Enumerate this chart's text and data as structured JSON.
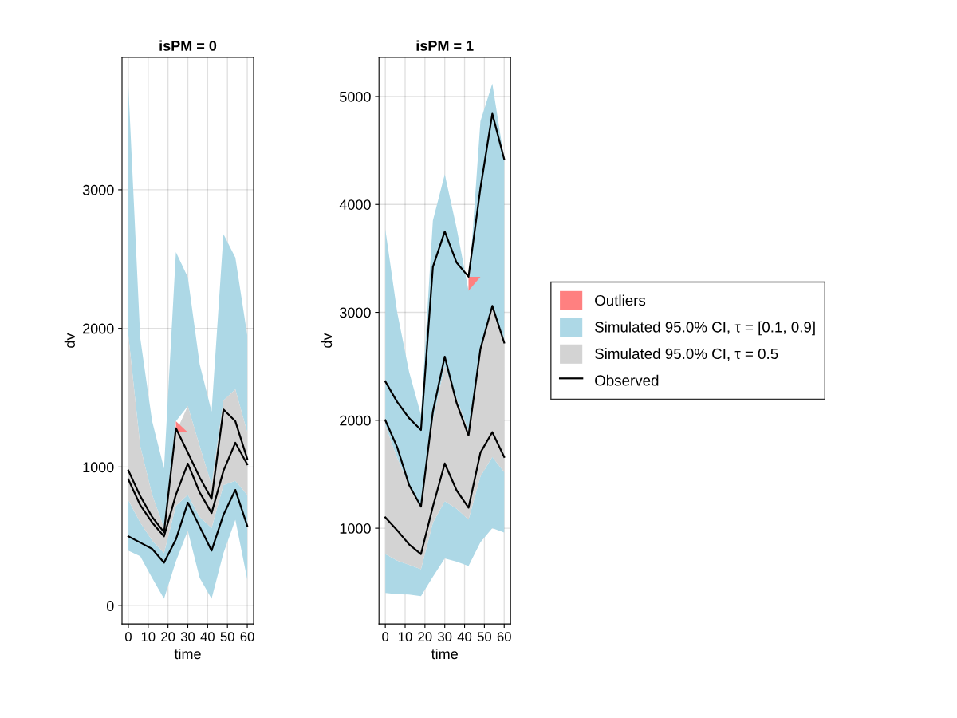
{
  "chart_data": [
    {
      "type": "line",
      "title": "isPM = 0",
      "xlabel": "time",
      "ylabel": "dv",
      "x": [
        0,
        6,
        12,
        18,
        24,
        30,
        36,
        42,
        48,
        54,
        60
      ],
      "xlim": [
        -3.2,
        63.2
      ],
      "xticks": [
        0,
        10,
        20,
        30,
        40,
        50,
        60
      ],
      "ylim": [
        -132,
        3955
      ],
      "yticks": [
        0,
        1000,
        2000,
        3000
      ],
      "grid": true,
      "legend": false,
      "series": [
        {
          "color": "#ff8080",
          "values": [
            null,
            null,
            null,
            null,
            null,
            null,
            null,
            null,
            null,
            null,
            null
          ],
          "lower": [
            null,
            null,
            null,
            null,
            1250,
            1250,
            null,
            null,
            null,
            null,
            null
          ],
          "upper": [
            null,
            null,
            null,
            null,
            1330,
            1250,
            null,
            null,
            null,
            null,
            null
          ]
        },
        {
          "color": "#add8e6",
          "values": [
            null,
            null,
            null,
            null,
            null,
            null,
            null,
            null,
            null,
            null,
            null
          ],
          "lower": [
            397,
            357,
            200,
            50,
            320,
            540,
            200,
            50,
            380,
            620,
            190
          ],
          "upper": [
            760,
            600,
            470,
            380,
            720,
            800,
            640,
            560,
            870,
            900,
            800
          ]
        },
        {
          "color": "#add8e6",
          "values": [
            null,
            null,
            null,
            null,
            null,
            null,
            null,
            null,
            null,
            null,
            null
          ],
          "lower": [
            1950,
            1150,
            800,
            560,
            1330,
            1440,
            1150,
            870,
            1480,
            1560,
            1250
          ],
          "upper": [
            3750,
            1930,
            1330,
            990,
            2550,
            2370,
            1740,
            1400,
            2680,
            2510,
            1950
          ]
        },
        {
          "color": "#d3d3d3",
          "values": [
            null,
            null,
            null,
            null,
            null,
            null,
            null,
            null,
            null,
            null,
            null
          ],
          "lower": [
            760,
            600,
            470,
            380,
            720,
            800,
            640,
            560,
            870,
            900,
            800
          ],
          "upper": [
            1950,
            1150,
            800,
            560,
            1250,
            1440,
            1150,
            870,
            1480,
            1560,
            1250
          ]
        },
        {
          "color": "#000000",
          "values": [
            975,
            790,
            640,
            530,
            1280,
            1105,
            925,
            770,
            1415,
            1330,
            1060
          ]
        },
        {
          "color": "#000000",
          "values": [
            910,
            725,
            600,
            500,
            800,
            1025,
            817,
            668,
            973,
            1175,
            1020
          ]
        },
        {
          "color": "#000000",
          "values": [
            500,
            455,
            410,
            310,
            478,
            743,
            570,
            397,
            656,
            835,
            576
          ]
        }
      ]
    },
    {
      "type": "line",
      "title": "isPM = 1",
      "xlabel": "time",
      "ylabel": "dv",
      "x": [
        0,
        6,
        12,
        18,
        24,
        30,
        36,
        42,
        48,
        54,
        60
      ],
      "xlim": [
        -3.2,
        63.2
      ],
      "xticks": [
        0,
        10,
        20,
        30,
        40,
        50,
        60
      ],
      "ylim": [
        113,
        5362
      ],
      "yticks": [
        1000,
        2000,
        3000,
        4000,
        5000
      ],
      "grid": true,
      "legend": "right",
      "series": [
        {
          "name": "Outliers",
          "color": "#ff8080",
          "values": [
            null,
            null,
            null,
            null,
            null,
            null,
            null,
            null,
            null,
            null,
            null
          ],
          "lower": [
            null,
            null,
            null,
            null,
            null,
            null,
            null,
            3200,
            3330,
            null,
            null
          ],
          "upper": [
            null,
            null,
            null,
            null,
            null,
            null,
            null,
            3330,
            3330,
            null,
            null
          ]
        },
        {
          "name": "Simulated 95.0% CI, τ = [0.1, 0.9]",
          "color": "#add8e6",
          "values": [
            null,
            null,
            null,
            null,
            null,
            null,
            null,
            null,
            null,
            null,
            null
          ],
          "lower": [
            400,
            390,
            385,
            370,
            550,
            720,
            690,
            650,
            870,
            1000,
            960
          ],
          "upper": [
            760,
            700,
            660,
            620,
            1050,
            1250,
            1180,
            1080,
            1480,
            1660,
            1520
          ]
        },
        {
          "color": "#add8e6",
          "values": [
            null,
            null,
            null,
            null,
            null,
            null,
            null,
            null,
            null,
            null,
            null
          ],
          "lower": [
            1950,
            1650,
            1400,
            1200,
            2000,
            2500,
            2200,
            1900,
            2650,
            3050,
            2750
          ],
          "upper": [
            3770,
            3000,
            2450,
            2050,
            3850,
            4280,
            3780,
            3200,
            4770,
            5120,
            4420
          ]
        },
        {
          "name": "Simulated 95.0% CI, τ = 0.5",
          "color": "#d3d3d3",
          "values": [
            null,
            null,
            null,
            null,
            null,
            null,
            null,
            null,
            null,
            null,
            null
          ],
          "lower": [
            760,
            700,
            660,
            620,
            1050,
            1250,
            1180,
            1080,
            1480,
            1660,
            1520
          ],
          "upper": [
            1950,
            1650,
            1400,
            1200,
            2000,
            2500,
            2200,
            1900,
            2650,
            3050,
            2750
          ]
        },
        {
          "name": "Observed",
          "color": "#000000",
          "values": [
            2360,
            2170,
            2020,
            1910,
            3420,
            3750,
            3460,
            3330,
            4150,
            4840,
            4420
          ]
        },
        {
          "color": "#000000",
          "values": [
            2000,
            1750,
            1400,
            1200,
            2080,
            2590,
            2160,
            1860,
            2660,
            3060,
            2720
          ]
        },
        {
          "color": "#000000",
          "values": [
            1100,
            980,
            850,
            760,
            1200,
            1600,
            1350,
            1190,
            1700,
            1890,
            1660
          ]
        }
      ]
    }
  ]
}
